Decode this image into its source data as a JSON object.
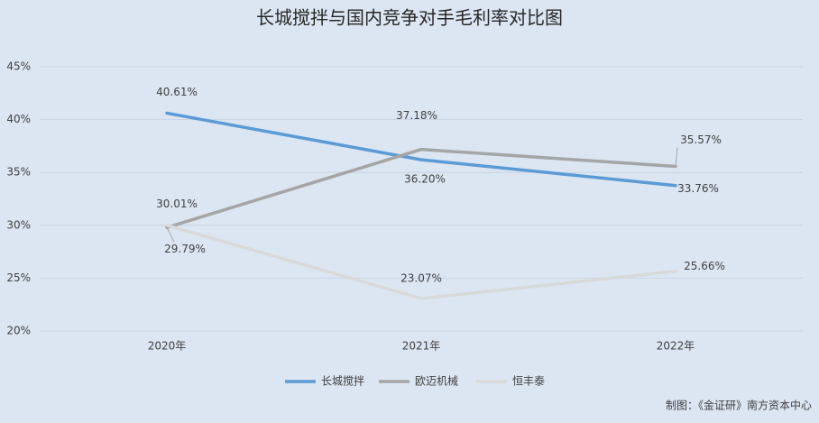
{
  "chart_data": {
    "type": "line",
    "title": "长城搅拌与国内竞争对手毛利率对比图",
    "categories": [
      "2020年",
      "2021年",
      "2022年"
    ],
    "series": [
      {
        "name": "长城搅拌",
        "color": "#5b9bd5",
        "values": [
          40.61,
          36.2,
          33.76
        ],
        "value_labels": [
          "40.61%",
          "36.20%",
          "33.76%"
        ]
      },
      {
        "name": "欧迈机械",
        "color": "#a5a5a5",
        "values": [
          29.79,
          37.18,
          35.57
        ],
        "value_labels": [
          "29.79%",
          "37.18%",
          "35.57%"
        ]
      },
      {
        "name": "恒丰泰",
        "color": "#d9d9d9",
        "values": [
          30.01,
          23.07,
          25.66
        ],
        "value_labels": [
          "30.01%",
          "23.07%",
          "25.66%"
        ]
      }
    ],
    "ylim": [
      20,
      45
    ],
    "yticks": [
      {
        "value": 20,
        "label": "20%"
      },
      {
        "value": 25,
        "label": "25%"
      },
      {
        "value": 30,
        "label": "30%"
      },
      {
        "value": 35,
        "label": "35%"
      },
      {
        "value": 40,
        "label": "40%"
      },
      {
        "value": 45,
        "label": "45%"
      }
    ],
    "grid": true,
    "legend": "bottom",
    "source": "制图：《金证研》南方资本中心"
  }
}
